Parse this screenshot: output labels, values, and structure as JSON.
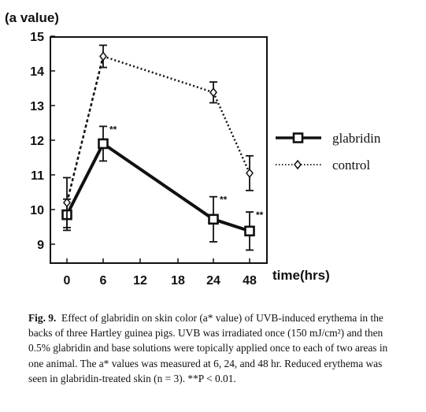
{
  "chart_data": {
    "type": "line",
    "ylabel": "(a value)",
    "xlabel": "time(hrs)",
    "ylim": [
      8.5,
      15
    ],
    "xlim": [
      -3,
      51
    ],
    "yticks": [
      9,
      10,
      11,
      12,
      13,
      14,
      15
    ],
    "xticks": [
      0,
      6,
      12,
      18,
      24,
      48
    ],
    "series": [
      {
        "name": "glabridin",
        "x": [
          0,
          6,
          24,
          48
        ],
        "y": [
          9.85,
          11.9,
          9.72,
          9.38
        ],
        "err": [
          0.45,
          0.5,
          0.65,
          0.55
        ],
        "sig": [
          "",
          "**",
          "**",
          "**"
        ],
        "color": "#111111",
        "style": "solid",
        "marker": "square"
      },
      {
        "name": "control",
        "x": [
          0,
          6,
          24,
          48
        ],
        "y": [
          10.2,
          14.42,
          13.38,
          11.05
        ],
        "err": [
          0.72,
          0.32,
          0.3,
          0.5
        ],
        "sig": [
          "",
          "",
          "",
          ""
        ],
        "color": "#111111",
        "style": "dashed",
        "marker": "diamond"
      }
    ],
    "legend": "right"
  },
  "caption": {
    "fig_label": "Fig. 9.",
    "text": "Effect of glabridin on skin color (a* value) of UVB-induced erythema in the backs of three Hartley guinea pigs. UVB was irradiated once (150 mJ/cm²) and then 0.5% glabridin and base solutions were topically applied once to each of two areas in one animal. The a* values was measured at 6, 24, and 48 hr. Reduced erythema was seen in glabridin-treated skin (n = 3). **P < 0.01."
  }
}
